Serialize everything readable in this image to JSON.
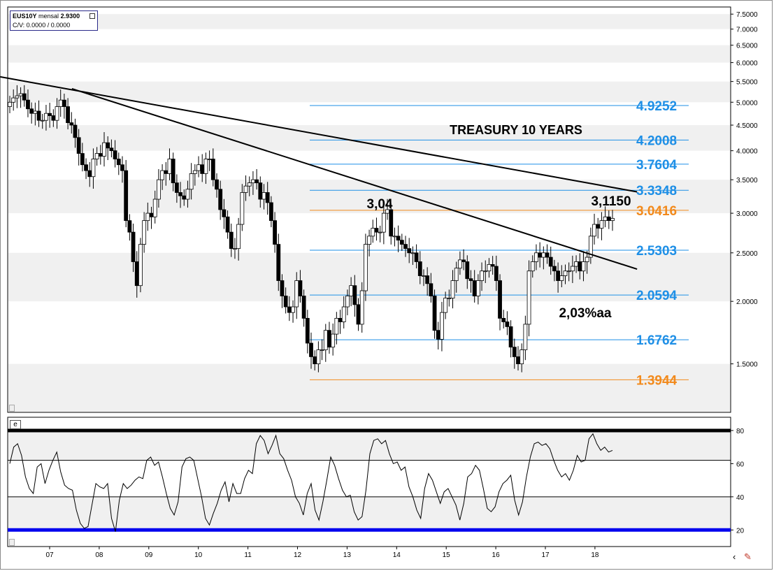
{
  "info": {
    "symbol": "EUS10Y",
    "period": "mensal",
    "price": "2.9300",
    "cv": "C/V: 0.0000 / 0.0000"
  },
  "indicator_label": "e",
  "chart_data": [
    {
      "type": "candlestick",
      "title": "TREASURY 10 YEARS",
      "x_tick_labels": [
        "07",
        "08",
        "09",
        "10",
        "11",
        "12",
        "13",
        "14",
        "15",
        "16",
        "17",
        "18"
      ],
      "y_scale": "log",
      "ylim": [
        1.2,
        7.75
      ],
      "y_tick_labels": [
        "7.5000",
        "7.0000",
        "6.5000",
        "6.0000",
        "5.5000",
        "5.0000",
        "4.5000",
        "4.0000",
        "3.5000",
        "3.0000",
        "2.5000",
        "2.0000",
        "1.5000"
      ],
      "fib_levels": [
        {
          "label": "4.9252",
          "value": 4.9252,
          "color": "#1e8fe6"
        },
        {
          "label": "4.2008",
          "value": 4.2008,
          "color": "#1e8fe6"
        },
        {
          "label": "3.7604",
          "value": 3.7604,
          "color": "#1e8fe6"
        },
        {
          "label": "3.3348",
          "value": 3.3348,
          "color": "#1e8fe6"
        },
        {
          "label": "3.0416",
          "value": 3.0416,
          "color": "#f28a1c"
        },
        {
          "label": "2.5303",
          "value": 2.5303,
          "color": "#1e8fe6"
        },
        {
          "label": "2.0594",
          "value": 2.0594,
          "color": "#1e8fe6"
        },
        {
          "label": "1.6762",
          "value": 1.6762,
          "color": "#1e8fe6"
        },
        {
          "label": "1.3944",
          "value": 1.3944,
          "color": "#f28a1c"
        }
      ],
      "annotations": [
        {
          "text": "3,04",
          "x": 2014.0,
          "y": 3.04
        },
        {
          "text": "3,1150",
          "x": 2018.4,
          "y": 3.115
        },
        {
          "text": "2,03%aa",
          "x": 2017.6,
          "y": 2.03
        }
      ],
      "trendlines": [
        {
          "from": [
            2006.0,
            5.62
          ],
          "to": [
            2018.85,
            3.31
          ]
        },
        {
          "from": [
            2007.45,
            5.32
          ],
          "to": [
            2018.85,
            2.32
          ]
        }
      ],
      "closes": [
        5.0,
        5.1,
        5.15,
        5.2,
        5.05,
        4.85,
        4.75,
        4.8,
        4.6,
        4.6,
        4.75,
        4.7,
        4.6,
        4.9,
        5.05,
        4.9,
        4.55,
        4.5,
        4.25,
        3.95,
        3.75,
        3.65,
        3.55,
        3.85,
        3.95,
        3.9,
        4.15,
        4.05,
        4.0,
        3.85,
        3.75,
        3.65,
        2.9,
        2.75,
        2.4,
        2.15,
        2.6,
        2.9,
        3.0,
        2.95,
        3.2,
        3.5,
        3.65,
        3.6,
        3.85,
        3.45,
        3.3,
        3.25,
        3.2,
        3.35,
        3.6,
        3.65,
        3.75,
        3.6,
        3.85,
        3.85,
        3.5,
        3.35,
        3.05,
        2.95,
        2.75,
        2.55,
        2.55,
        2.85,
        3.3,
        3.4,
        3.45,
        3.5,
        3.45,
        3.2,
        3.3,
        3.15,
        2.9,
        2.6,
        2.2,
        2.05,
        1.95,
        1.9,
        1.95,
        2.2,
        2.05,
        1.85,
        1.65,
        1.55,
        1.5,
        1.6,
        1.6,
        1.75,
        1.62,
        1.72,
        1.85,
        1.82,
        1.95,
        2.05,
        2.15,
        1.97,
        1.8,
        2.1,
        2.6,
        2.7,
        2.8,
        2.75,
        2.75,
        3.0,
        3.05,
        2.7,
        2.7,
        2.65,
        2.6,
        2.55,
        2.5,
        2.5,
        2.4,
        2.25,
        2.25,
        2.17,
        2.05,
        1.75,
        1.68,
        1.9,
        2.03,
        2.03,
        2.2,
        2.33,
        2.42,
        2.4,
        2.22,
        2.2,
        2.05,
        2.2,
        2.3,
        2.3,
        2.37,
        2.35,
        2.2,
        1.85,
        1.82,
        1.78,
        1.62,
        1.55,
        1.5,
        1.6,
        1.8,
        2.3,
        2.4,
        2.5,
        2.45,
        2.5,
        2.45,
        2.35,
        2.3,
        2.2,
        2.25,
        2.3,
        2.3,
        2.35,
        2.4,
        2.3,
        2.4,
        2.45,
        2.7,
        2.85,
        2.8,
        2.9,
        2.95,
        2.9,
        2.93
      ],
      "indicator": {
        "y_tick_labels": [
          "80",
          "60",
          "40",
          "20"
        ],
        "ylim": [
          10,
          88
        ],
        "levels": [
          {
            "value": 80,
            "color": "#000000"
          },
          {
            "value": 62,
            "color": "#000000"
          },
          {
            "value": 40,
            "color": "#000000"
          },
          {
            "value": 20,
            "color": "#0000ee"
          }
        ],
        "values": [
          60,
          70,
          72,
          65,
          52,
          45,
          42,
          58,
          60,
          48,
          56,
          62,
          67,
          55,
          47,
          45,
          44,
          32,
          24,
          21,
          22,
          35,
          48,
          46,
          45,
          48,
          27,
          19,
          38,
          48,
          45,
          47,
          50,
          52,
          51,
          62,
          64,
          59,
          61,
          52,
          42,
          33,
          29,
          37,
          58,
          63,
          64,
          62,
          51,
          40,
          27,
          23,
          30,
          36,
          44,
          49,
          37,
          48,
          42,
          42,
          51,
          56,
          54,
          72,
          77,
          74,
          66,
          71,
          77,
          66,
          63,
          56,
          50,
          40,
          36,
          29,
          42,
          48,
          32,
          26,
          37,
          50,
          64,
          59,
          51,
          44,
          40,
          41,
          31,
          26,
          28,
          44,
          66,
          74,
          75,
          72,
          74,
          66,
          60,
          61,
          56,
          58,
          46,
          40,
          32,
          27,
          45,
          54,
          50,
          43,
          36,
          43,
          45,
          40,
          35,
          26,
          36,
          52,
          54,
          59,
          56,
          45,
          33,
          31,
          34,
          43,
          48,
          50,
          53,
          38,
          29,
          37,
          52,
          64,
          72,
          73,
          71,
          72,
          69,
          62,
          56,
          52,
          54,
          50,
          56,
          65,
          61,
          62,
          75,
          78,
          72,
          68,
          70,
          67,
          68
        ]
      }
    }
  ]
}
